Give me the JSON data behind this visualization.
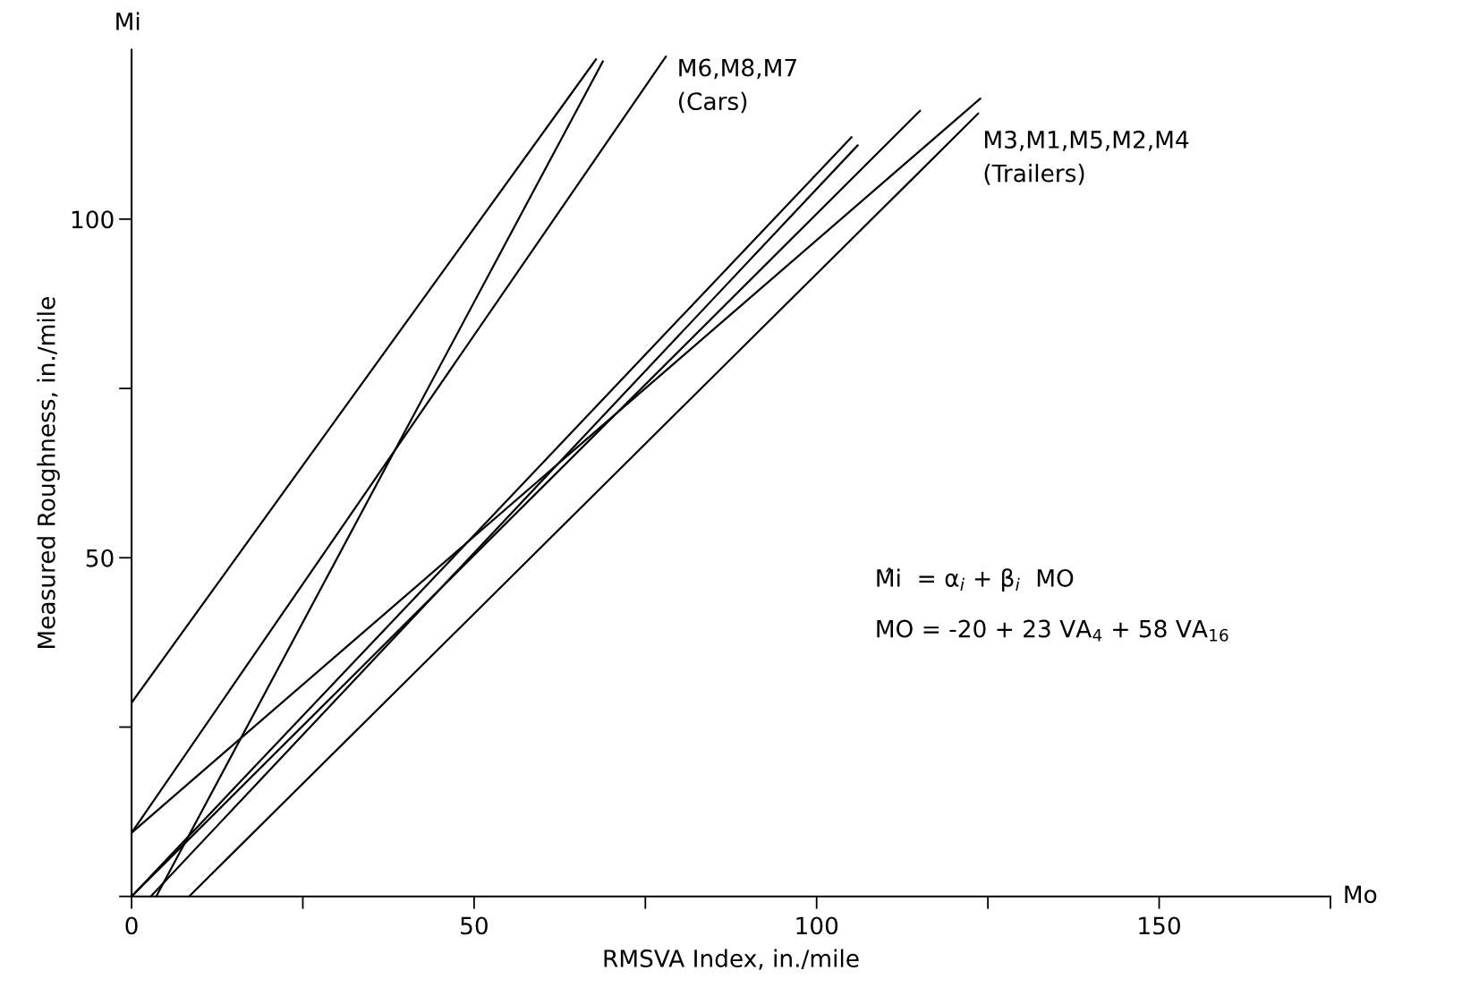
{
  "chart_data": {
    "type": "line",
    "xlabel": "RMSVA Index, in./mile",
    "ylabel": "Measured Roughness, in./mile",
    "xlim": [
      0,
      175
    ],
    "ylim": [
      0,
      125
    ],
    "xticks": [
      0,
      {
        "value": 25,
        "label": null
      },
      50,
      {
        "value": 75,
        "label": null
      },
      100,
      {
        "value": 125,
        "label": null
      },
      150,
      {
        "value": 175,
        "label": null
      }
    ],
    "yticks": [
      {
        "value": 0,
        "label": null
      },
      {
        "value": 25,
        "label": null
      },
      50,
      {
        "value": 75,
        "label": null
      },
      100
    ],
    "grid": false,
    "legend": false,
    "marker": "none",
    "line_style": "solid",
    "series": [
      {
        "color": "#000000",
        "x": [
          0,
          67.8
        ],
        "values": [
          28.6,
          123.6
        ]
      },
      {
        "color": "#000000",
        "x": [
          0,
          78.0
        ],
        "values": [
          9.4,
          124.0
        ]
      },
      {
        "color": "#000000",
        "x": [
          3.6,
          68.8
        ],
        "values": [
          0,
          123.3
        ]
      },
      {
        "color": "#000000",
        "x": [
          0,
          123.9
        ],
        "values": [
          9.4,
          117.8
        ]
      },
      {
        "color": "#000000",
        "x": [
          0,
          105.1
        ],
        "values": [
          0,
          112.1
        ]
      },
      {
        "color": "#000000",
        "x": [
          2.8,
          106.0
        ],
        "values": [
          0,
          110.9
        ]
      },
      {
        "color": "#000000",
        "x": [
          0,
          115.1
        ],
        "values": [
          0,
          116.0
        ]
      },
      {
        "color": "#000000",
        "x": [
          8.4,
          123.6
        ],
        "values": [
          0,
          115.6
        ]
      }
    ],
    "annotations": [
      "M6,M8,M7\n(Cars)",
      "M3,M1,M5,M2,M4\n(Trailers)",
      "Mi",
      "Mo",
      "M̂i  = α$_{i}$ + β$_{i}$  MO",
      "MO = -20 + 23 VA$_{4}$ + 58 VA$_{16}$"
    ]
  }
}
